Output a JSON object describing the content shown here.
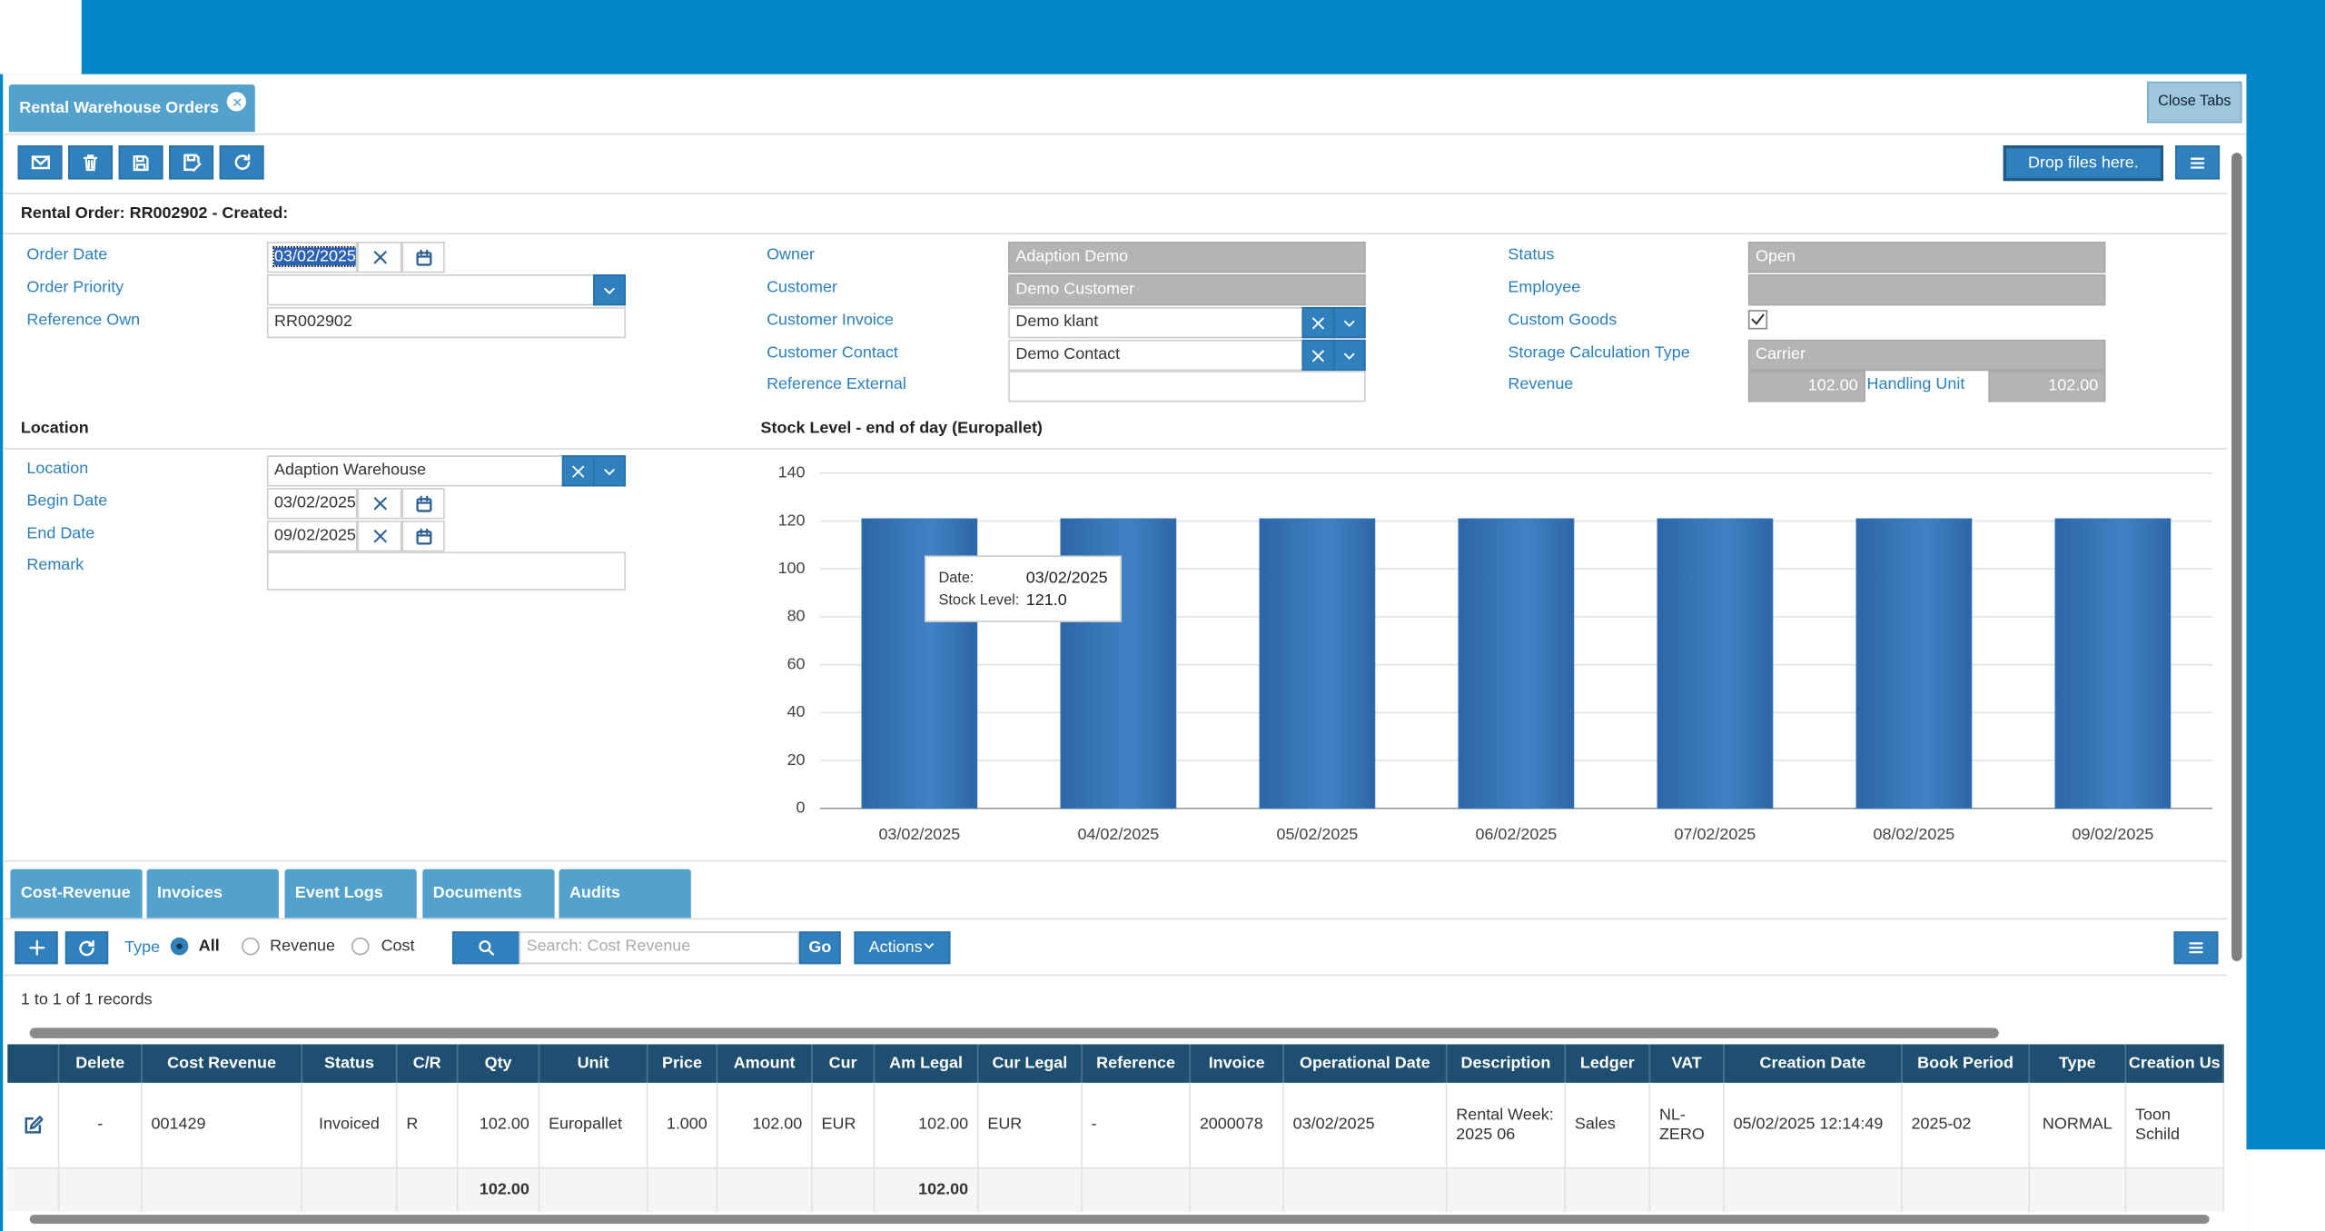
{
  "tabs": {
    "active": "Rental Warehouse Orders",
    "close": "Close Tabs"
  },
  "toolbar": {
    "drop": "Drop files here."
  },
  "header": "Rental Order: RR002902 - Created:",
  "form": {
    "order_date": {
      "label": "Order Date",
      "value": "03/02/2025"
    },
    "order_priority": {
      "label": "Order Priority"
    },
    "reference_own": {
      "label": "Reference Own",
      "value": "RR002902"
    },
    "owner": {
      "label": "Owner",
      "value": "Adaption Demo"
    },
    "customer": {
      "label": "Customer",
      "value": "Demo Customer"
    },
    "customer_invoice": {
      "label": "Customer Invoice",
      "value": "Demo klant"
    },
    "customer_contact": {
      "label": "Customer Contact",
      "value": "Demo Contact"
    },
    "reference_external": {
      "label": "Reference External"
    },
    "status": {
      "label": "Status",
      "value": "Open"
    },
    "employee": {
      "label": "Employee"
    },
    "custom_goods": {
      "label": "Custom Goods",
      "checked": true
    },
    "storage_calculation_type": {
      "label": "Storage Calculation Type",
      "value": "Carrier"
    },
    "revenue": {
      "label": "Revenue",
      "value": "102.00"
    },
    "handling_unit": {
      "label": "Handling Unit",
      "value": "102.00"
    }
  },
  "location": {
    "title": "Location",
    "location": {
      "label": "Location",
      "value": "Adaption Warehouse"
    },
    "begin_date": {
      "label": "Begin Date",
      "value": "03/02/2025"
    },
    "end_date": {
      "label": "End Date",
      "value": "09/02/2025"
    },
    "remark": {
      "label": "Remark"
    }
  },
  "chart_data": {
    "type": "bar",
    "title": "Stock Level - end of day (Europallet)",
    "categories": [
      "03/02/2025",
      "04/02/2025",
      "05/02/2025",
      "06/02/2025",
      "07/02/2025",
      "08/02/2025",
      "09/02/2025"
    ],
    "values": [
      121,
      121,
      121,
      121,
      121,
      121,
      121
    ],
    "color": "#3a78b8",
    "ylim": [
      0,
      140
    ],
    "yticks": [
      0,
      20,
      40,
      60,
      80,
      100,
      120,
      140
    ],
    "grid": true,
    "tooltip": {
      "date_label": "Date:",
      "date": "03/02/2025",
      "value_label": "Stock Level:",
      "value": "121.0"
    }
  },
  "bottom_tabs": [
    "Cost-Revenue",
    "Invoices",
    "Event Logs",
    "Documents",
    "Audits"
  ],
  "grid_toolbar": {
    "type_label": "Type",
    "options": [
      "All",
      "Revenue",
      "Cost"
    ],
    "search_placeholder": "Search: Cost Revenue",
    "go": "Go",
    "actions": "Actions"
  },
  "records": "1 to 1 of 1 records",
  "table": {
    "columns": [
      null,
      "Delete",
      "Cost Revenue",
      "Status",
      "C/R",
      "Qty",
      "Unit",
      "Price",
      "Amount",
      "Cur",
      "Am Legal",
      "Cur Legal",
      "Reference",
      "Invoice",
      "Operational Date",
      "Description",
      "Ledger",
      "VAT",
      "Creation Date",
      "Book Period",
      "Type",
      "Creation Us"
    ],
    "rows": [
      [
        null,
        "-",
        "001429",
        "Invoiced",
        "R",
        "102.00",
        "Europallet",
        "1.000",
        "102.00",
        "EUR",
        "102.00",
        "EUR",
        "-",
        "2000078",
        "03/02/2025",
        "Rental Week: 2025 06",
        "Sales",
        "NL-ZERO",
        "05/02/2025 12:14:49",
        "2025-02",
        "NORMAL",
        "Toon Schild"
      ]
    ],
    "totals": [
      null,
      null,
      null,
      null,
      null,
      "102.00",
      null,
      null,
      null,
      null,
      "102.00",
      null,
      null,
      null,
      null,
      null,
      null,
      null,
      null,
      null,
      null,
      null
    ]
  }
}
